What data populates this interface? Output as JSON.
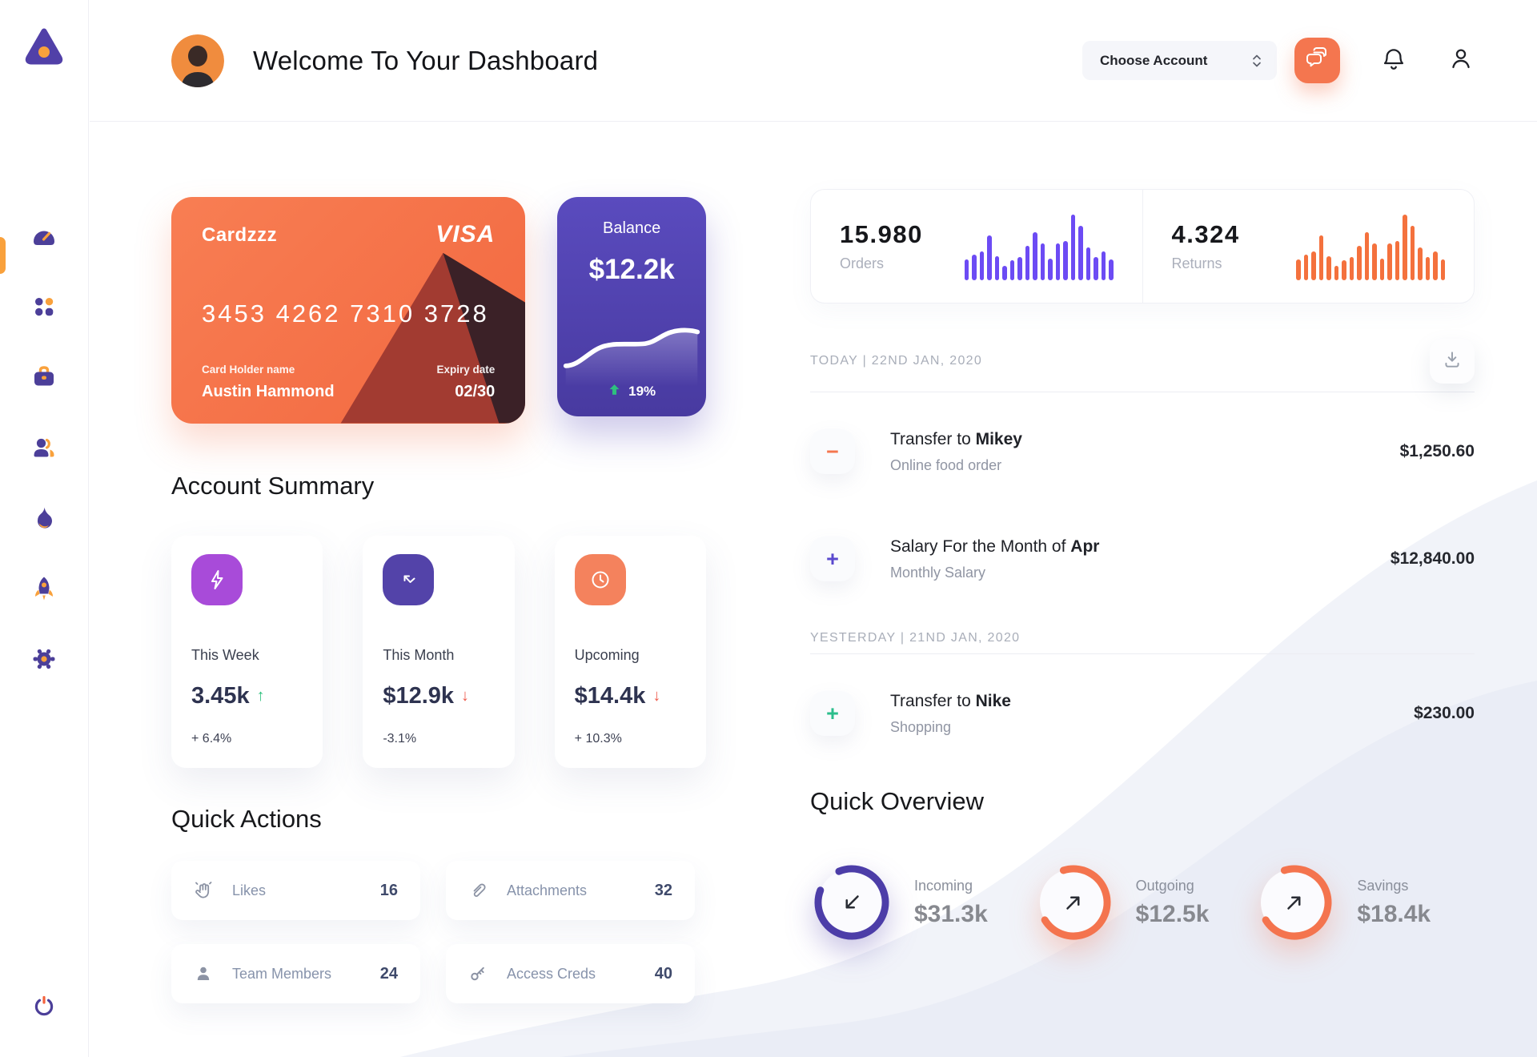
{
  "header": {
    "title": "Welcome To Your Dashboard",
    "account_select": {
      "label": "Choose Account"
    }
  },
  "sidebar": {
    "items": [
      {
        "icon": "dashboard-gauge",
        "active": true
      },
      {
        "icon": "apps-grid",
        "active": false
      },
      {
        "icon": "briefcase",
        "active": false
      },
      {
        "icon": "team-users",
        "active": false
      },
      {
        "icon": "flame",
        "active": false
      },
      {
        "icon": "rocket",
        "active": false
      },
      {
        "icon": "settings-gear",
        "active": false
      }
    ],
    "power_icon": "power"
  },
  "bank_card": {
    "name": "Cardzzz",
    "brand": "VISA",
    "number": "3453 4262 7310 3728",
    "holder_label": "Card Holder name",
    "holder_name": "Austin Hammond",
    "expiry_label": "Expiry date",
    "expiry": "02/30"
  },
  "balance_card": {
    "label": "Balance",
    "amount": "$12.2k",
    "change": "19%",
    "trend": "up"
  },
  "stats": {
    "orders": {
      "value": "15.980",
      "label": "Orders"
    },
    "returns": {
      "value": "4.324",
      "label": "Returns"
    }
  },
  "account_summary": {
    "title": "Account Summary",
    "cards": [
      {
        "icon": "lightning",
        "label": "This Week",
        "value": "3.45k",
        "arrow": "↑",
        "delta": "+ 6.4%",
        "accent": "#A84BD9"
      },
      {
        "icon": "trend-arrow",
        "label": "This Month",
        "value": "$12.9k",
        "arrow": "↓",
        "delta": "-3.1%",
        "accent": "#5343A9"
      },
      {
        "icon": "clock",
        "label": "Upcoming",
        "value": "$14.4k",
        "arrow": "↓",
        "delta": "+ 10.3%",
        "accent": "#F4825D"
      }
    ]
  },
  "quick_actions": {
    "title": "Quick Actions",
    "items": [
      {
        "icon": "clap-hands",
        "label": "Likes",
        "count": "16"
      },
      {
        "icon": "paperclip",
        "label": "Attachments",
        "count": "32"
      },
      {
        "icon": "team-member",
        "label": "Team Members",
        "count": "24"
      },
      {
        "icon": "key",
        "label": "Access Creds",
        "count": "40"
      }
    ]
  },
  "transactions": {
    "download_icon": "download",
    "sections": [
      {
        "date_label": "TODAY | 22ND JAN, 2020",
        "rows": [
          {
            "sign": "−",
            "sign_color": "#F4764E",
            "title_prefix": "Transfer to ",
            "title_bold": "Mikey",
            "subtitle": "Online food order",
            "amount": "$1,250.60"
          },
          {
            "sign": "+",
            "sign_color": "#5A49CE",
            "title_prefix": "Salary For the Month of ",
            "title_bold": "Apr",
            "subtitle": "Monthly Salary",
            "amount": "$12,840.00"
          }
        ]
      },
      {
        "date_label": "YESTERDAY | 21ND JAN, 2020",
        "rows": [
          {
            "sign": "+",
            "sign_color": "#2BBE8C",
            "title_prefix": "Transfer to ",
            "title_bold": "Nike",
            "subtitle": "Shopping",
            "amount": "$230.00"
          }
        ]
      }
    ]
  },
  "quick_overview": {
    "title": "Quick Overview",
    "items": [
      {
        "label": "Incoming",
        "value": "$31.3k",
        "percent": 87,
        "ring_color": "#4C3DA8",
        "arrow": "down-left",
        "rotate": -112.5
      },
      {
        "label": "Outgoing",
        "value": "$12.5k",
        "percent": 71,
        "ring_color": "#F4744E",
        "arrow": "up-right",
        "rotate": -107.5
      },
      {
        "label": "Savings",
        "value": "$18.4k",
        "percent": 71,
        "ring_color": "#F4744E",
        "arrow": "up-right",
        "rotate": -107.5
      }
    ]
  },
  "chart_data": [
    {
      "type": "bar",
      "id": "orders-spark",
      "series_label": "Orders",
      "color": "#6C4BF4",
      "unit": "relative-height-px",
      "values": [
        26,
        32,
        36,
        56,
        30,
        18,
        25,
        29,
        43,
        60,
        46,
        27,
        46,
        49,
        82,
        68,
        41,
        29,
        36,
        26
      ]
    },
    {
      "type": "bar",
      "id": "returns-spark",
      "series_label": "Returns",
      "color": "#F4713D",
      "unit": "relative-height-px",
      "values": [
        26,
        32,
        36,
        56,
        30,
        18,
        25,
        29,
        43,
        60,
        46,
        27,
        46,
        49,
        82,
        68,
        41,
        29,
        36,
        26
      ]
    },
    {
      "type": "line",
      "id": "balance-spark",
      "series_label": "Balance trend",
      "color": "#FFFFFF",
      "trend": "up 19%",
      "path_points": [
        [
          8,
          48
        ],
        [
          30,
          47
        ],
        [
          52,
          27
        ],
        [
          80,
          24
        ],
        [
          97,
          25
        ],
        [
          124,
          12
        ],
        [
          152,
          11
        ]
      ]
    }
  ],
  "colors": {
    "primary_orange": "#F4744E",
    "primary_purple": "#5143AC",
    "bar_purple": "#6C4BF4",
    "bar_orange": "#F4713D",
    "green": "#2BBE8C",
    "red": "#EF5B4D",
    "text_dark": "#1E2025",
    "text_grey": "#9AA0AC",
    "accent_amber": "#F9A13C"
  }
}
